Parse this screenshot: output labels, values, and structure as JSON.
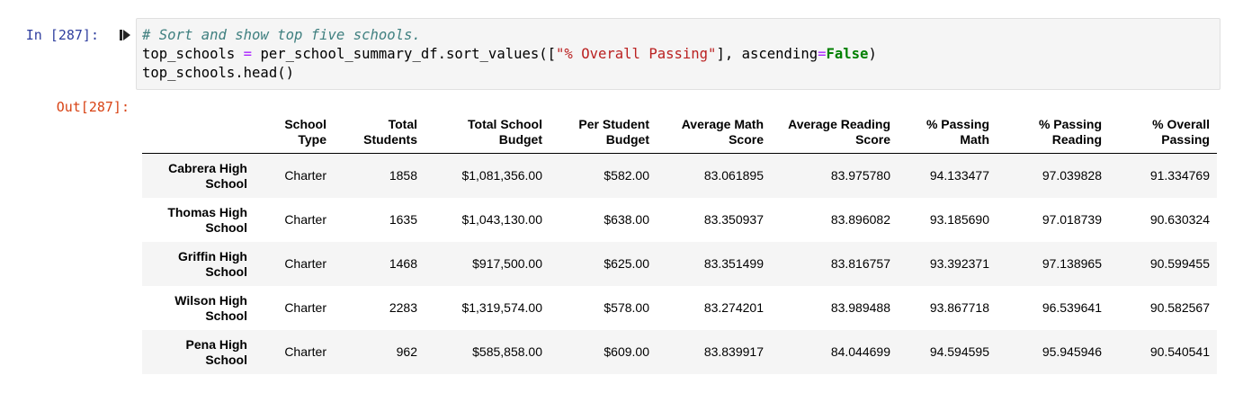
{
  "input_prompt": "In [287]:",
  "output_prompt": "Out[287]:",
  "run_icon": "run-cell-icon",
  "code": {
    "line1": "# Sort and show top five schools.",
    "line2_a": "top_schools ",
    "line2_op": "=",
    "line2_b": " per_school_summary_df.sort_values([",
    "line2_str": "\"% Overall Passing\"",
    "line2_c": "], ascending",
    "line2_op2": "=",
    "line2_kw": "False",
    "line2_d": ")",
    "line3": "top_schools.head()"
  },
  "table": {
    "columns": [
      {
        "l1": "School",
        "l2": "Type"
      },
      {
        "l1": "Total",
        "l2": "Students"
      },
      {
        "l1": "Total School",
        "l2": "Budget"
      },
      {
        "l1": "Per Student",
        "l2": "Budget"
      },
      {
        "l1": "Average Math",
        "l2": "Score"
      },
      {
        "l1": "Average Reading",
        "l2": "Score"
      },
      {
        "l1": "% Passing",
        "l2": "Math"
      },
      {
        "l1": "% Passing",
        "l2": "Reading"
      },
      {
        "l1": "% Overall",
        "l2": "Passing"
      }
    ],
    "rows": [
      {
        "index_l1": "Cabrera High",
        "index_l2": "School",
        "cells": [
          "Charter",
          "1858",
          "$1,081,356.00",
          "$582.00",
          "83.061895",
          "83.975780",
          "94.133477",
          "97.039828",
          "91.334769"
        ]
      },
      {
        "index_l1": "Thomas High",
        "index_l2": "School",
        "cells": [
          "Charter",
          "1635",
          "$1,043,130.00",
          "$638.00",
          "83.350937",
          "83.896082",
          "93.185690",
          "97.018739",
          "90.630324"
        ]
      },
      {
        "index_l1": "Griffin High",
        "index_l2": "School",
        "cells": [
          "Charter",
          "1468",
          "$917,500.00",
          "$625.00",
          "83.351499",
          "83.816757",
          "93.392371",
          "97.138965",
          "90.599455"
        ]
      },
      {
        "index_l1": "Wilson High",
        "index_l2": "School",
        "cells": [
          "Charter",
          "2283",
          "$1,319,574.00",
          "$578.00",
          "83.274201",
          "83.989488",
          "93.867718",
          "96.539641",
          "90.582567"
        ]
      },
      {
        "index_l1": "Pena High",
        "index_l2": "School",
        "cells": [
          "Charter",
          "962",
          "$585,858.00",
          "$609.00",
          "83.839917",
          "84.044699",
          "94.594595",
          "95.945946",
          "90.540541"
        ]
      }
    ]
  }
}
